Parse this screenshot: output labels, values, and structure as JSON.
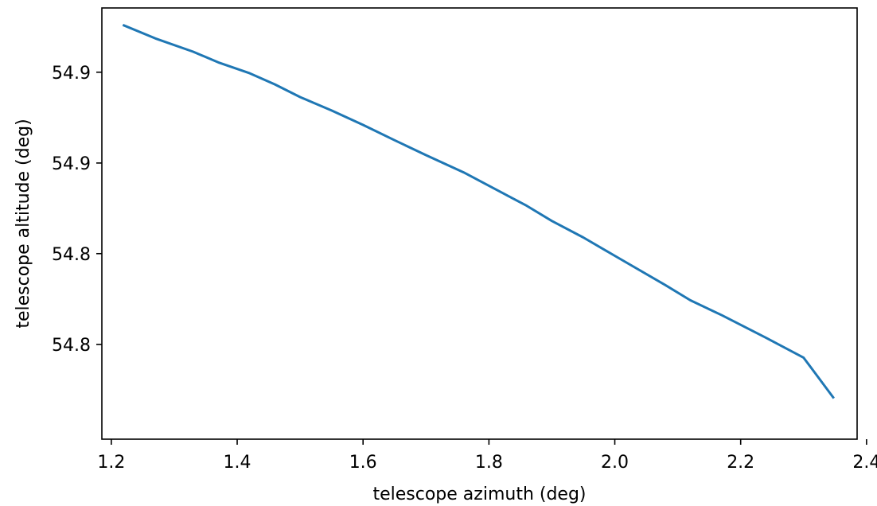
{
  "chart_data": {
    "type": "line",
    "title": "",
    "xlabel": "telescope azimuth (deg)",
    "ylabel": "telescope altitude (deg)",
    "xlim": [
      1.185,
      2.385
    ],
    "ylim": [
      54.7565,
      54.9545
    ],
    "grid": false,
    "x_ticks": [
      1.2,
      1.4,
      1.6,
      1.8,
      2.0,
      2.2,
      2.4
    ],
    "x_tick_labels": [
      "1.2",
      "1.4",
      "1.6",
      "1.8",
      "2.0",
      "2.2",
      "2.4"
    ],
    "y_ticks": [
      54.925,
      54.8833,
      54.8417,
      54.8
    ],
    "y_tick_labels": [
      "54.9",
      "54.9",
      "54.8",
      "54.8"
    ],
    "color": "#1f77b4",
    "series": [
      {
        "x": [
          1.22,
          1.27,
          1.33,
          1.37,
          1.42,
          1.46,
          1.5,
          1.55,
          1.6,
          1.65,
          1.7,
          1.76,
          1.81,
          1.86,
          1.9,
          1.95,
          2.0,
          2.08,
          2.12,
          2.17,
          2.24,
          2.3,
          2.347
        ],
        "y": [
          54.9465,
          54.9405,
          54.9344,
          54.9295,
          54.9245,
          54.9194,
          54.9136,
          54.9074,
          54.9008,
          54.8938,
          54.8869,
          54.879,
          54.8713,
          54.8637,
          54.8567,
          54.8491,
          54.8407,
          54.8273,
          54.8203,
          54.8134,
          54.8031,
          54.7939,
          54.7757
        ]
      }
    ]
  }
}
